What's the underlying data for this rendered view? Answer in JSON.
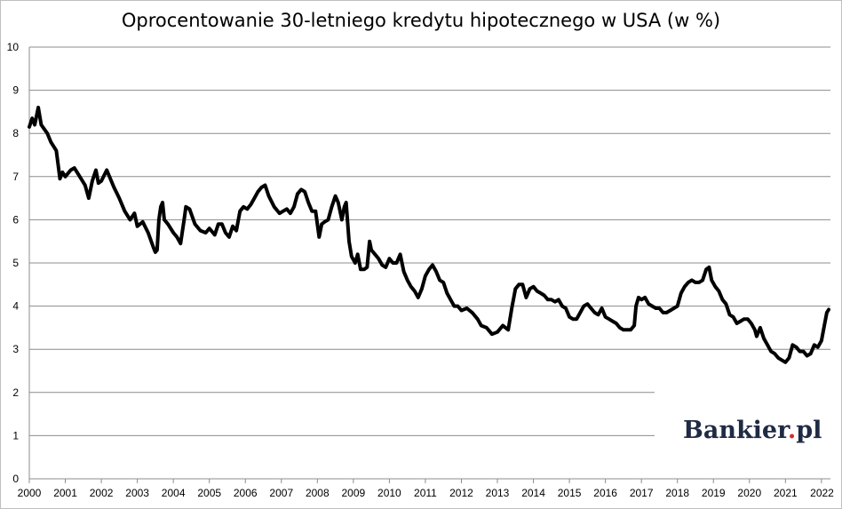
{
  "chart_data": {
    "type": "line",
    "title": "Oprocentowanie 30-letniego kredytu hipotecznego w USA (w %)",
    "xlabel": "",
    "ylabel": "",
    "xlim": [
      2000.0,
      2022.25
    ],
    "ylim": [
      0,
      10
    ],
    "grid": true,
    "y_ticks": [
      "0",
      "1",
      "2",
      "3",
      "4",
      "5",
      "6",
      "7",
      "8",
      "9",
      "10"
    ],
    "x_ticks": [
      "2000",
      "2001",
      "2002",
      "2003",
      "2004",
      "2005",
      "2006",
      "2007",
      "2008",
      "2009",
      "2010",
      "2011",
      "2012",
      "2013",
      "2014",
      "2015",
      "2016",
      "2017",
      "2018",
      "2019",
      "2020",
      "2021",
      "2022"
    ],
    "series": [
      {
        "color": "#000000",
        "points": [
          [
            2000.0,
            8.15
          ],
          [
            2000.08,
            8.35
          ],
          [
            2000.15,
            8.2
          ],
          [
            2000.25,
            8.6
          ],
          [
            2000.33,
            8.2
          ],
          [
            2000.5,
            8.0
          ],
          [
            2000.6,
            7.8
          ],
          [
            2000.75,
            7.6
          ],
          [
            2000.85,
            6.95
          ],
          [
            2000.92,
            7.1
          ],
          [
            2001.0,
            7.0
          ],
          [
            2001.15,
            7.15
          ],
          [
            2001.25,
            7.2
          ],
          [
            2001.4,
            7.0
          ],
          [
            2001.55,
            6.8
          ],
          [
            2001.65,
            6.5
          ],
          [
            2001.75,
            6.9
          ],
          [
            2001.85,
            7.15
          ],
          [
            2001.92,
            6.85
          ],
          [
            2002.0,
            6.9
          ],
          [
            2002.15,
            7.15
          ],
          [
            2002.35,
            6.75
          ],
          [
            2002.5,
            6.5
          ],
          [
            2002.65,
            6.2
          ],
          [
            2002.8,
            6.0
          ],
          [
            2002.92,
            6.15
          ],
          [
            2003.0,
            5.85
          ],
          [
            2003.15,
            5.95
          ],
          [
            2003.3,
            5.7
          ],
          [
            2003.45,
            5.35
          ],
          [
            2003.5,
            5.25
          ],
          [
            2003.55,
            5.3
          ],
          [
            2003.6,
            6.0
          ],
          [
            2003.65,
            6.3
          ],
          [
            2003.7,
            6.4
          ],
          [
            2003.75,
            6.0
          ],
          [
            2003.85,
            5.9
          ],
          [
            2004.0,
            5.7
          ],
          [
            2004.1,
            5.6
          ],
          [
            2004.2,
            5.45
          ],
          [
            2004.3,
            6.0
          ],
          [
            2004.35,
            6.3
          ],
          [
            2004.45,
            6.25
          ],
          [
            2004.6,
            5.9
          ],
          [
            2004.75,
            5.75
          ],
          [
            2004.9,
            5.7
          ],
          [
            2005.0,
            5.8
          ],
          [
            2005.15,
            5.65
          ],
          [
            2005.25,
            5.9
          ],
          [
            2005.35,
            5.9
          ],
          [
            2005.45,
            5.7
          ],
          [
            2005.55,
            5.6
          ],
          [
            2005.65,
            5.85
          ],
          [
            2005.75,
            5.75
          ],
          [
            2005.85,
            6.2
          ],
          [
            2005.95,
            6.3
          ],
          [
            2006.05,
            6.25
          ],
          [
            2006.15,
            6.35
          ],
          [
            2006.25,
            6.5
          ],
          [
            2006.35,
            6.65
          ],
          [
            2006.45,
            6.75
          ],
          [
            2006.55,
            6.8
          ],
          [
            2006.65,
            6.55
          ],
          [
            2006.8,
            6.3
          ],
          [
            2006.95,
            6.15
          ],
          [
            2007.05,
            6.2
          ],
          [
            2007.15,
            6.25
          ],
          [
            2007.25,
            6.15
          ],
          [
            2007.35,
            6.3
          ],
          [
            2007.45,
            6.6
          ],
          [
            2007.55,
            6.7
          ],
          [
            2007.65,
            6.65
          ],
          [
            2007.75,
            6.4
          ],
          [
            2007.85,
            6.2
          ],
          [
            2007.95,
            6.2
          ],
          [
            2008.05,
            5.6
          ],
          [
            2008.12,
            5.9
          ],
          [
            2008.2,
            5.95
          ],
          [
            2008.3,
            6.0
          ],
          [
            2008.4,
            6.3
          ],
          [
            2008.5,
            6.55
          ],
          [
            2008.58,
            6.4
          ],
          [
            2008.68,
            6.0
          ],
          [
            2008.75,
            6.3
          ],
          [
            2008.8,
            6.4
          ],
          [
            2008.88,
            5.5
          ],
          [
            2008.95,
            5.15
          ],
          [
            2009.05,
            5.0
          ],
          [
            2009.12,
            5.2
          ],
          [
            2009.2,
            4.85
          ],
          [
            2009.3,
            4.85
          ],
          [
            2009.38,
            4.9
          ],
          [
            2009.45,
            5.5
          ],
          [
            2009.5,
            5.3
          ],
          [
            2009.6,
            5.2
          ],
          [
            2009.7,
            5.1
          ],
          [
            2009.8,
            4.95
          ],
          [
            2009.9,
            4.9
          ],
          [
            2010.0,
            5.1
          ],
          [
            2010.1,
            5.0
          ],
          [
            2010.2,
            5.0
          ],
          [
            2010.3,
            5.2
          ],
          [
            2010.4,
            4.8
          ],
          [
            2010.5,
            4.6
          ],
          [
            2010.6,
            4.45
          ],
          [
            2010.7,
            4.35
          ],
          [
            2010.8,
            4.2
          ],
          [
            2010.9,
            4.4
          ],
          [
            2011.0,
            4.7
          ],
          [
            2011.1,
            4.85
          ],
          [
            2011.2,
            4.95
          ],
          [
            2011.3,
            4.8
          ],
          [
            2011.4,
            4.6
          ],
          [
            2011.5,
            4.55
          ],
          [
            2011.6,
            4.3
          ],
          [
            2011.7,
            4.15
          ],
          [
            2011.8,
            4.0
          ],
          [
            2011.9,
            4.0
          ],
          [
            2012.0,
            3.9
          ],
          [
            2012.15,
            3.95
          ],
          [
            2012.3,
            3.85
          ],
          [
            2012.45,
            3.7
          ],
          [
            2012.55,
            3.55
          ],
          [
            2012.7,
            3.5
          ],
          [
            2012.85,
            3.35
          ],
          [
            2013.0,
            3.4
          ],
          [
            2013.15,
            3.55
          ],
          [
            2013.3,
            3.45
          ],
          [
            2013.4,
            3.95
          ],
          [
            2013.5,
            4.4
          ],
          [
            2013.6,
            4.5
          ],
          [
            2013.7,
            4.5
          ],
          [
            2013.8,
            4.2
          ],
          [
            2013.9,
            4.4
          ],
          [
            2014.0,
            4.45
          ],
          [
            2014.1,
            4.35
          ],
          [
            2014.2,
            4.3
          ],
          [
            2014.3,
            4.25
          ],
          [
            2014.4,
            4.15
          ],
          [
            2014.5,
            4.15
          ],
          [
            2014.6,
            4.1
          ],
          [
            2014.7,
            4.15
          ],
          [
            2014.8,
            4.0
          ],
          [
            2014.9,
            3.95
          ],
          [
            2015.0,
            3.75
          ],
          [
            2015.1,
            3.7
          ],
          [
            2015.2,
            3.7
          ],
          [
            2015.3,
            3.85
          ],
          [
            2015.4,
            4.0
          ],
          [
            2015.5,
            4.05
          ],
          [
            2015.6,
            3.95
          ],
          [
            2015.7,
            3.85
          ],
          [
            2015.8,
            3.8
          ],
          [
            2015.9,
            3.95
          ],
          [
            2016.0,
            3.75
          ],
          [
            2016.1,
            3.7
          ],
          [
            2016.2,
            3.65
          ],
          [
            2016.3,
            3.6
          ],
          [
            2016.4,
            3.5
          ],
          [
            2016.5,
            3.45
          ],
          [
            2016.6,
            3.45
          ],
          [
            2016.7,
            3.45
          ],
          [
            2016.8,
            3.55
          ],
          [
            2016.85,
            4.0
          ],
          [
            2016.92,
            4.2
          ],
          [
            2017.0,
            4.15
          ],
          [
            2017.1,
            4.2
          ],
          [
            2017.2,
            4.05
          ],
          [
            2017.3,
            4.0
          ],
          [
            2017.4,
            3.95
          ],
          [
            2017.5,
            3.95
          ],
          [
            2017.6,
            3.85
          ],
          [
            2017.7,
            3.85
          ],
          [
            2017.8,
            3.9
          ],
          [
            2017.9,
            3.95
          ],
          [
            2018.0,
            4.0
          ],
          [
            2018.1,
            4.3
          ],
          [
            2018.2,
            4.45
          ],
          [
            2018.3,
            4.55
          ],
          [
            2018.4,
            4.6
          ],
          [
            2018.5,
            4.55
          ],
          [
            2018.6,
            4.55
          ],
          [
            2018.7,
            4.6
          ],
          [
            2018.8,
            4.85
          ],
          [
            2018.88,
            4.9
          ],
          [
            2018.95,
            4.6
          ],
          [
            2019.05,
            4.45
          ],
          [
            2019.15,
            4.35
          ],
          [
            2019.25,
            4.15
          ],
          [
            2019.35,
            4.05
          ],
          [
            2019.45,
            3.8
          ],
          [
            2019.55,
            3.75
          ],
          [
            2019.65,
            3.6
          ],
          [
            2019.75,
            3.65
          ],
          [
            2019.85,
            3.7
          ],
          [
            2019.95,
            3.7
          ],
          [
            2020.05,
            3.6
          ],
          [
            2020.15,
            3.45
          ],
          [
            2020.2,
            3.3
          ],
          [
            2020.3,
            3.5
          ],
          [
            2020.4,
            3.25
          ],
          [
            2020.5,
            3.1
          ],
          [
            2020.6,
            2.95
          ],
          [
            2020.7,
            2.9
          ],
          [
            2020.8,
            2.8
          ],
          [
            2020.9,
            2.75
          ],
          [
            2021.0,
            2.7
          ],
          [
            2021.1,
            2.8
          ],
          [
            2021.2,
            3.1
          ],
          [
            2021.3,
            3.05
          ],
          [
            2021.4,
            2.95
          ],
          [
            2021.5,
            2.95
          ],
          [
            2021.6,
            2.85
          ],
          [
            2021.7,
            2.9
          ],
          [
            2021.8,
            3.1
          ],
          [
            2021.9,
            3.05
          ],
          [
            2022.0,
            3.2
          ],
          [
            2022.08,
            3.55
          ],
          [
            2022.15,
            3.85
          ],
          [
            2022.2,
            3.92
          ]
        ]
      }
    ]
  },
  "logo": {
    "text": "Bankier.pl",
    "accent_color": "#d32f2f",
    "text_color": "#1f2a44"
  }
}
